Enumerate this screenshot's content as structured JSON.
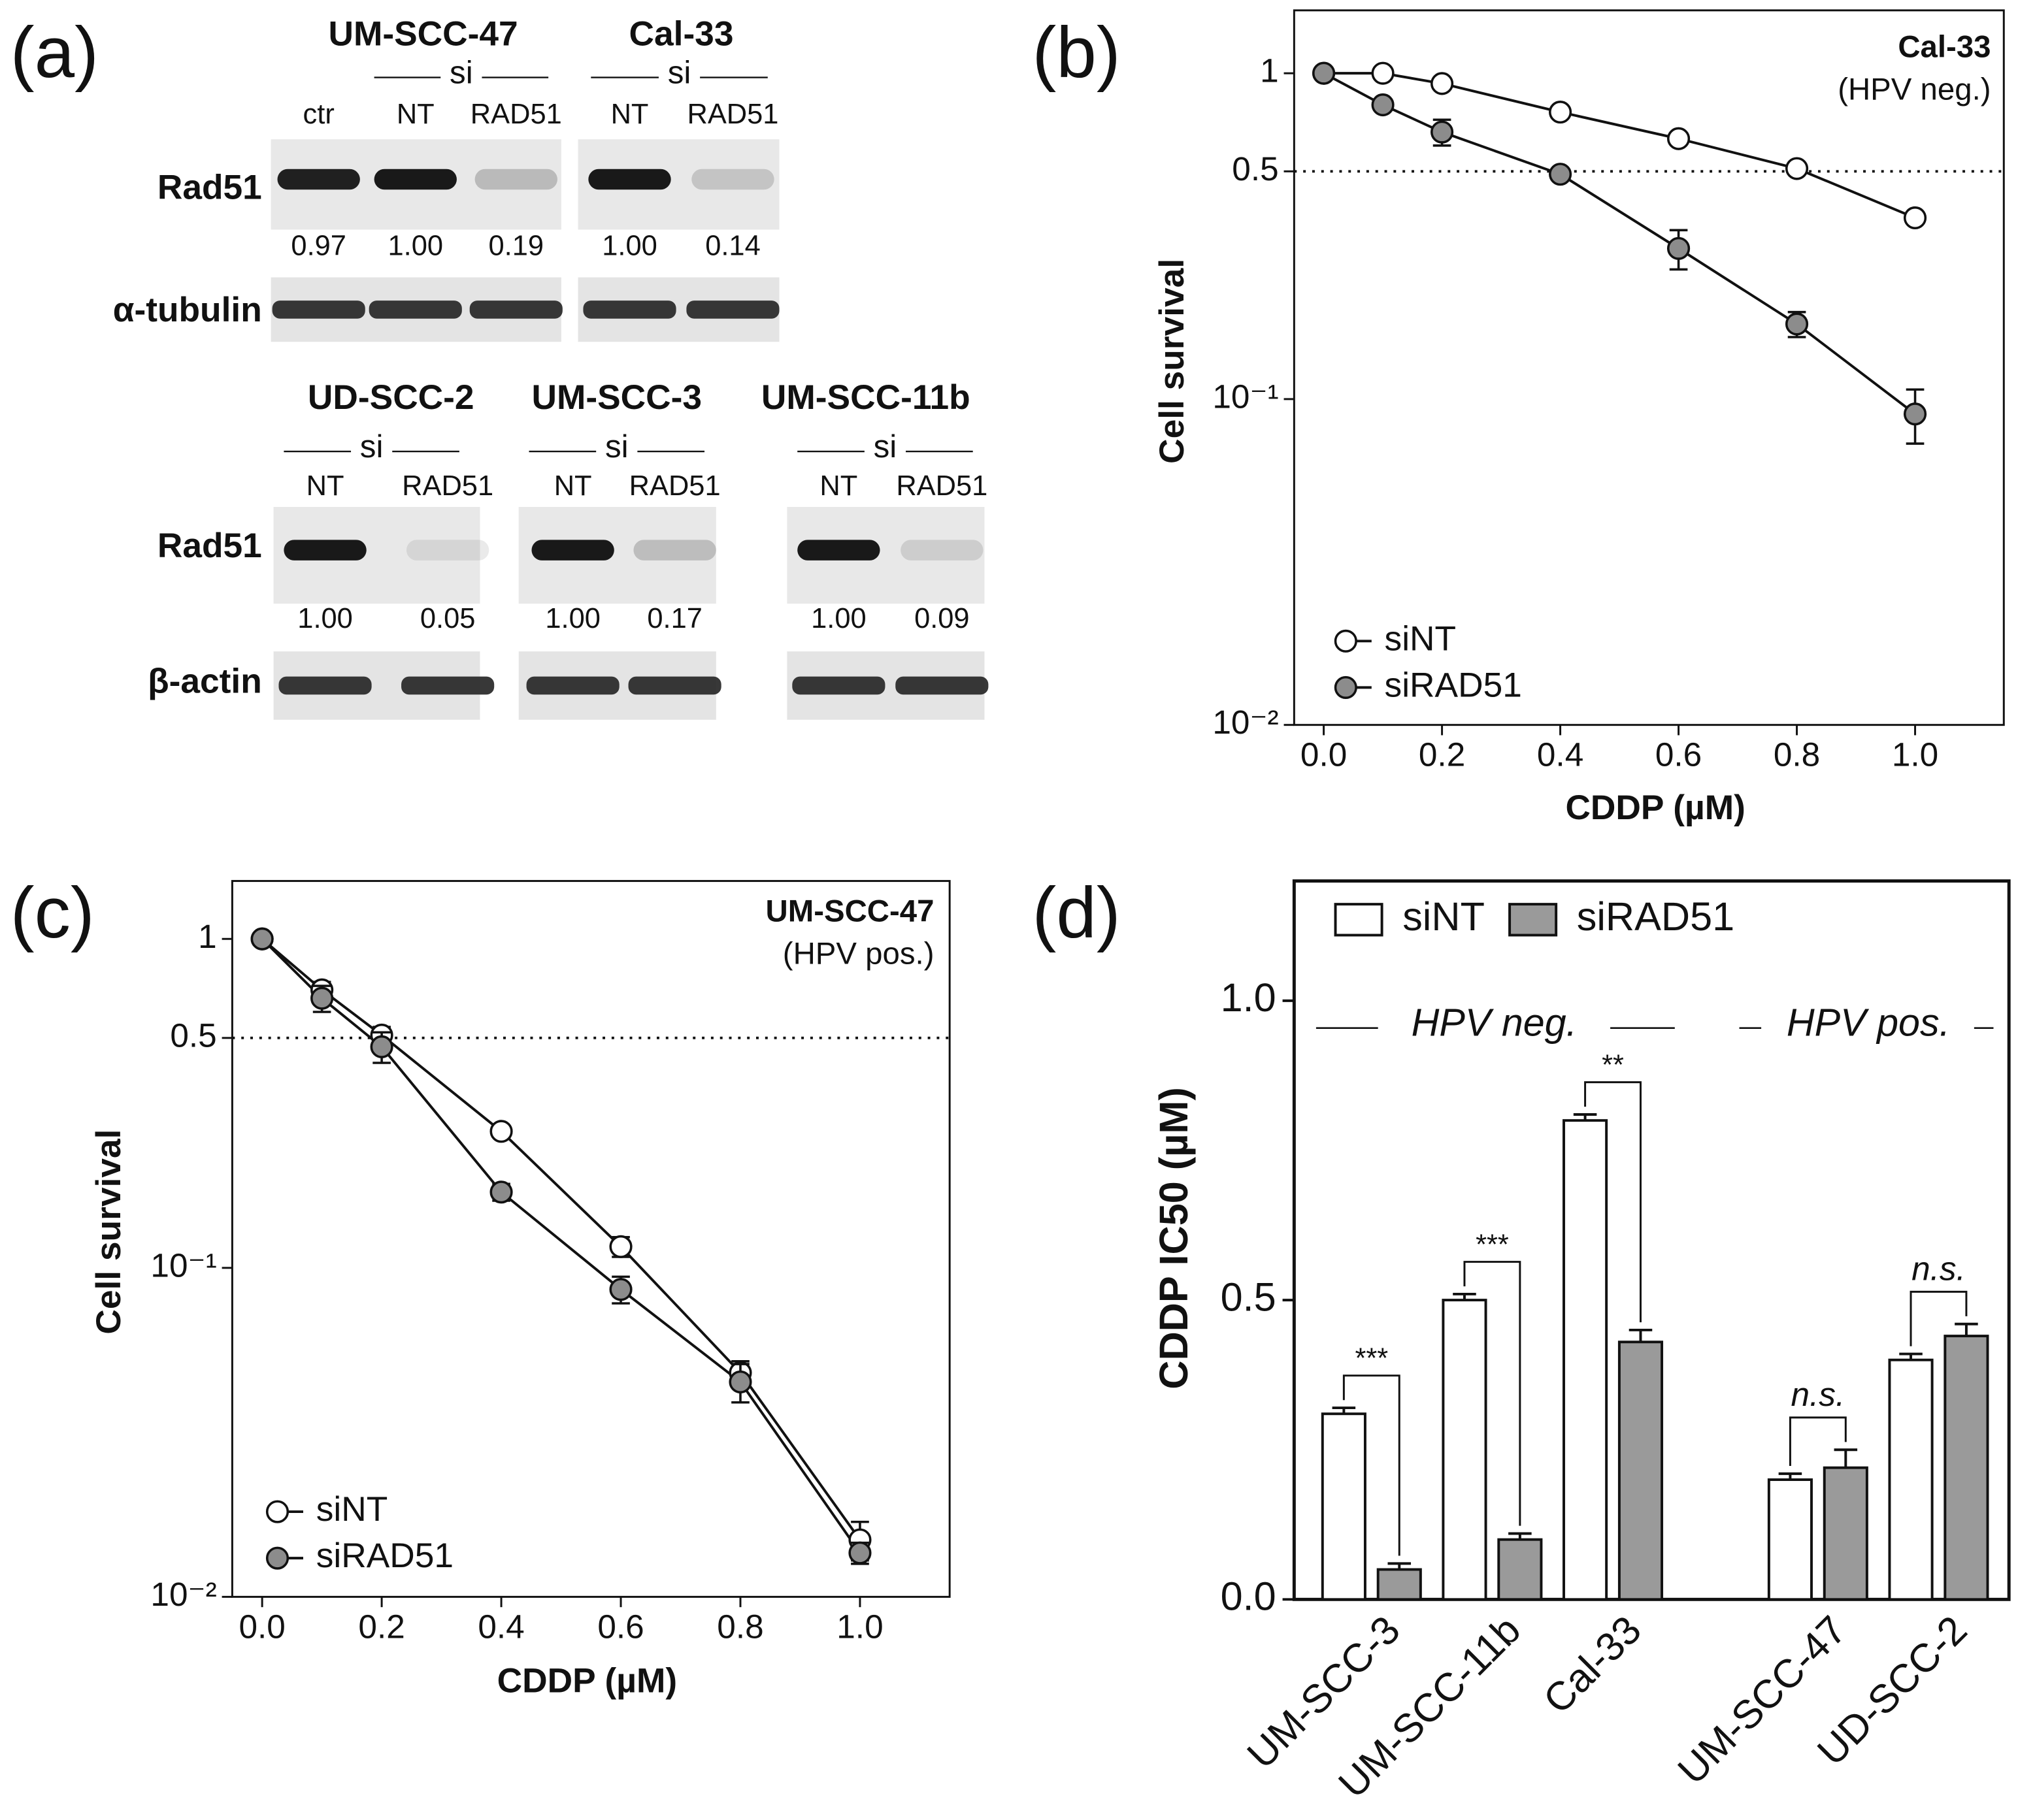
{
  "panel_labels": [
    "(a)",
    "(b)",
    "(c)",
    "(d)"
  ],
  "blot": {
    "top_rows": [
      "Rad51",
      "α-tubulin"
    ],
    "bottom_rows": [
      "Rad51",
      "β-actin"
    ],
    "groups": [
      {
        "cell_line": "UM-SCC-47",
        "si": "si",
        "lanes": [
          "ctr",
          "NT",
          "RAD51"
        ],
        "quantification": [
          "0.97",
          "1.00",
          "0.19"
        ]
      },
      {
        "cell_line": "Cal-33",
        "si": "si",
        "lanes": [
          "NT",
          "RAD51"
        ],
        "quantification": [
          "1.00",
          "0.14"
        ]
      },
      {
        "cell_line": "UD-SCC-2",
        "si": "si",
        "lanes": [
          "NT",
          "RAD51"
        ],
        "quantification": [
          "1.00",
          "0.05"
        ]
      },
      {
        "cell_line": "UM-SCC-3",
        "si": "si",
        "lanes": [
          "NT",
          "RAD51"
        ],
        "quantification": [
          "1.00",
          "0.17"
        ]
      },
      {
        "cell_line": "UM-SCC-11b",
        "si": "si",
        "lanes": [
          "NT",
          "RAD51"
        ],
        "quantification": [
          "1.00",
          "0.09"
        ]
      }
    ]
  },
  "chart_data": [
    {
      "type": "line",
      "title": "Cal-33",
      "subtitle": "(HPV neg.)",
      "x_label": "CDDP (µM)",
      "y_label": "Cell survival",
      "log_y": true,
      "legend": "lower left",
      "hline": 0.5,
      "xlim": [
        -0.05,
        1.15
      ],
      "ylim": [
        0.01,
        1.56
      ],
      "xticks": [
        {
          "value": 0,
          "label": "0.0"
        },
        0.2,
        0.4,
        0.6,
        0.8,
        {
          "value": 1,
          "label": "1.0"
        }
      ],
      "yticks": [
        {
          "value": 0.01,
          "label": "10⁻²"
        },
        {
          "value": 0.1,
          "label": "10⁻¹"
        },
        0.5,
        1
      ],
      "x": [
        0,
        0.1,
        0.2,
        0.4,
        0.6,
        0.8,
        1
      ],
      "series": [
        {
          "name": "siNT",
          "color": "#ffffff",
          "values": [
            1,
            1.0,
            0.93,
            0.76,
            0.63,
            0.51,
            0.36
          ],
          "errors": [
            0,
            0,
            0.03,
            0.02,
            0.02,
            0.02,
            0.01
          ]
        },
        {
          "name": "siRAD51",
          "color": "#8c8c8c",
          "values": [
            1,
            0.8,
            0.66,
            0.49,
            0.29,
            0.17,
            0.09
          ],
          "errors": [
            0,
            0.02,
            0.06,
            0.02,
            0.04,
            0.015,
            0.017
          ]
        }
      ]
    },
    {
      "type": "line",
      "title": "UM-SCC-47",
      "subtitle": "(HPV pos.)",
      "x_label": "CDDP (µM)",
      "y_label": "Cell survival",
      "log_y": true,
      "legend": "lower left",
      "hline": 0.5,
      "xlim": [
        -0.05,
        1.15
      ],
      "ylim": [
        0.01,
        1.5
      ],
      "xticks": [
        {
          "value": 0,
          "label": "0.0"
        },
        0.2,
        0.4,
        0.6,
        0.8,
        {
          "value": 1,
          "label": "1.0"
        }
      ],
      "yticks": [
        {
          "value": 0.01,
          "label": "10⁻²"
        },
        {
          "value": 0.1,
          "label": "10⁻¹"
        },
        0.5,
        1
      ],
      "x": [
        0,
        0.1,
        0.2,
        0.4,
        0.6,
        0.8,
        1
      ],
      "series": [
        {
          "name": "siNT",
          "color": "#ffffff",
          "values": [
            1,
            0.7,
            0.51,
            0.26,
            0.116,
            0.048,
            0.0149
          ],
          "errors": [
            0,
            0.04,
            0.03,
            0.01,
            0.008,
            0.004,
            0.002
          ]
        },
        {
          "name": "siRAD51",
          "color": "#8c8c8c",
          "values": [
            1,
            0.66,
            0.47,
            0.17,
            0.086,
            0.045,
            0.0136
          ],
          "errors": [
            0,
            0.06,
            0.05,
            0.01,
            0.008,
            0.006,
            0.001
          ]
        }
      ]
    },
    {
      "type": "bar",
      "y_label": "CDDP IC50 (µM)",
      "legend": "upper left",
      "ylim": [
        0,
        1.2
      ],
      "yticks": [
        {
          "value": 0,
          "label": "0.0"
        },
        0.5,
        {
          "value": 1,
          "label": "1.0"
        }
      ],
      "categories": [
        "UM-SCC-3",
        "UM-SCC-11b",
        "Cal-33",
        "UM-SCC-47",
        "UD-SCC-2"
      ],
      "groups": [
        {
          "label": "HPV neg."
        },
        {
          "label": "HPV pos."
        }
      ],
      "annotations": [
        "***",
        "***",
        "**",
        "n.s.",
        "n.s."
      ],
      "series": [
        {
          "name": "siNT",
          "color": "#ffffff",
          "values": [
            0.31,
            0.5,
            0.8,
            0.2,
            0.4
          ],
          "errors": [
            0.01,
            0.01,
            0.01,
            0.01,
            0.01
          ]
        },
        {
          "name": "siRAD51",
          "color": "#9a9a9a",
          "values": [
            0.05,
            0.1,
            0.43,
            0.22,
            0.44
          ],
          "errors": [
            0.01,
            0.01,
            0.02,
            0.03,
            0.02
          ]
        }
      ]
    }
  ]
}
